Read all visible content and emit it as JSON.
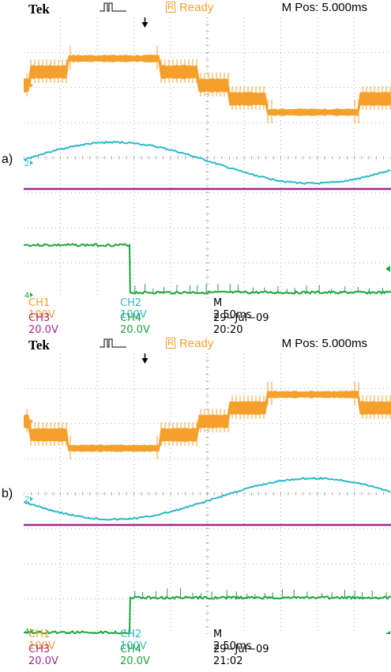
{
  "panels": [
    {
      "label": "a)",
      "header": {
        "brand": "Tek",
        "status_box": "R",
        "status": "Ready",
        "m_pos": "M Pos: 5.000ms"
      },
      "channel_markers": {
        "ch1": "1",
        "ch2": "2",
        "ch4": "4"
      },
      "footer": {
        "ch1": "CH1  100V",
        "ch2": "CH2  100V",
        "timebase": "M 2.50ms",
        "ch3": "CH3  20.0V",
        "ch4": "CH4  20.0V",
        "datetime": "29−Jul−09 20:20"
      },
      "waveforms": {
        "ch2_phase": 0,
        "ch4_step_fraction": 0.29,
        "ch4_high_before": true
      }
    },
    {
      "label": "b)",
      "header": {
        "brand": "Tek",
        "status_box": "R",
        "status": "Ready",
        "m_pos": "M Pos: 5.000ms"
      },
      "channel_markers": {
        "ch1": "1",
        "ch2": "2",
        "ch4": "4"
      },
      "footer": {
        "ch1": "CH1  100V",
        "ch2": "CH2  100V",
        "timebase": "M 2.50ms",
        "ch3": "CH3  20.0V",
        "ch4": "CH4  20.0V",
        "datetime": "29−Jul−09 21:02"
      },
      "waveforms": {
        "ch2_phase": 1,
        "ch4_step_fraction": 0.29,
        "ch4_high_before": false
      }
    }
  ],
  "colors": {
    "ch1": "#f5a02c",
    "ch2": "#2bb9c7",
    "ch3": "#a2288f",
    "ch4": "#1fa33f",
    "grid": "#9a9a9a"
  }
}
